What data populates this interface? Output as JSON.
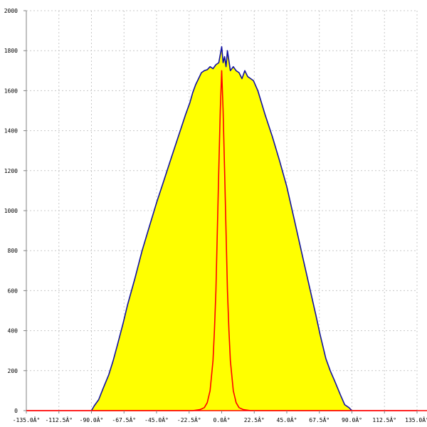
{
  "chart_data": {
    "type": "area",
    "title": "",
    "xlabel": "",
    "ylabel": "",
    "xlim": [
      -135,
      135
    ],
    "ylim": [
      0,
      2000
    ],
    "grid": true,
    "x_ticks": [
      -135,
      -112.5,
      -90,
      -67.5,
      -45,
      -22.5,
      0,
      22.5,
      45,
      67.5,
      90,
      112.5,
      135
    ],
    "x_tick_labels": [
      "-135.0Â°",
      "-112.5Â°",
      "-90.0Â°",
      "-67.5Â°",
      "-45.0Â°",
      "-22.5Â°",
      "0.0Â°",
      "22.5Â°",
      "45.0Â°",
      "67.5Â°",
      "90.0Â°",
      "112.5Â°",
      "135.0Â°"
    ],
    "y_ticks": [
      0,
      200,
      400,
      600,
      800,
      1000,
      1200,
      1400,
      1600,
      1800,
      2000
    ],
    "y_tick_labels": [
      "0",
      "200",
      "400",
      "600",
      "800",
      "1000",
      "1200",
      "1400",
      "1600",
      "1800",
      "2000"
    ],
    "series": [
      {
        "color": "#1010a0",
        "fill": "#ffff00",
        "x": [
          -90,
          -88,
          -85,
          -82,
          -78,
          -75,
          -72,
          -68,
          -65,
          -60,
          -55,
          -50,
          -45,
          -40,
          -35,
          -30,
          -25,
          -22,
          -20,
          -18,
          -16,
          -14,
          -12,
          -10,
          -8,
          -6,
          -4,
          -2,
          -1,
          0,
          1,
          2,
          3,
          4,
          6,
          8,
          10,
          12,
          14,
          16,
          18,
          20,
          22,
          25,
          30,
          35,
          40,
          45,
          50,
          55,
          60,
          65,
          68,
          72,
          75,
          78,
          82,
          85,
          88,
          90
        ],
        "values": [
          0,
          25,
          55,
          110,
          180,
          250,
          330,
          440,
          530,
          660,
          800,
          920,
          1040,
          1150,
          1260,
          1370,
          1480,
          1540,
          1590,
          1630,
          1660,
          1690,
          1700,
          1705,
          1720,
          1710,
          1730,
          1740,
          1780,
          1820,
          1740,
          1770,
          1720,
          1800,
          1700,
          1720,
          1700,
          1690,
          1660,
          1700,
          1670,
          1660,
          1650,
          1600,
          1480,
          1370,
          1250,
          1120,
          960,
          800,
          640,
          480,
          380,
          260,
          200,
          150,
          80,
          30,
          15,
          0
        ]
      },
      {
        "color": "#ff0000",
        "x": [
          -135,
          -20,
          -15,
          -12,
          -10,
          -8,
          -6,
          -5,
          -4,
          -3,
          -2,
          -1,
          0,
          1,
          2,
          3,
          4,
          5,
          6,
          8,
          10,
          12,
          15,
          20,
          135
        ],
        "values": [
          0,
          0,
          5,
          15,
          40,
          100,
          250,
          400,
          600,
          900,
          1200,
          1500,
          1700,
          1500,
          1200,
          900,
          600,
          400,
          250,
          100,
          40,
          15,
          5,
          0,
          0
        ]
      }
    ]
  }
}
